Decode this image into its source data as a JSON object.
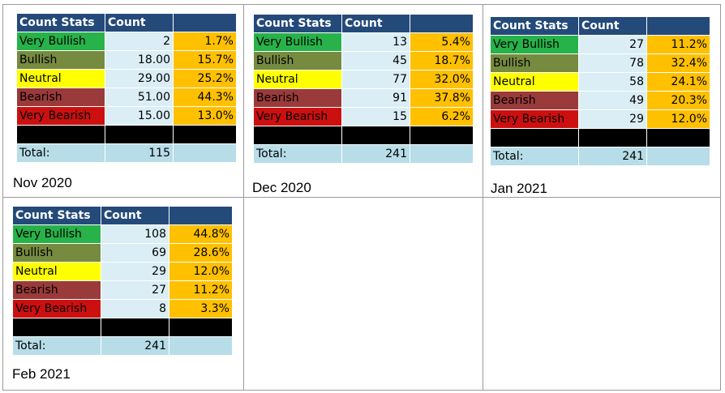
{
  "header": {
    "col1": "Count Stats",
    "col2": "Count",
    "col3": ""
  },
  "category_colors": {
    "very_bullish": "#27b24a",
    "bullish": "#768a40",
    "neutral": "#ffff00",
    "bearish": "#9a3a3a",
    "very_bearish": "#cc1010"
  },
  "panels": [
    {
      "caption": "Nov 2020",
      "rows": [
        {
          "label": "Very Bullish",
          "count": "2",
          "pct": "1.7%"
        },
        {
          "label": "Bullish",
          "count": "18.00",
          "pct": "15.7%"
        },
        {
          "label": "Neutral",
          "count": "29.00",
          "pct": "25.2%"
        },
        {
          "label": "Bearish",
          "count": "51.00",
          "pct": "44.3%"
        },
        {
          "label": "Very Bearish",
          "count": "15.00",
          "pct": "13.0%"
        }
      ],
      "total_label": "Total:",
      "total": "115"
    },
    {
      "caption": "Dec 2020",
      "rows": [
        {
          "label": "Very Bullish",
          "count": "13",
          "pct": "5.4%"
        },
        {
          "label": "Bullish",
          "count": "45",
          "pct": "18.7%"
        },
        {
          "label": "Neutral",
          "count": "77",
          "pct": "32.0%"
        },
        {
          "label": "Bearish",
          "count": "91",
          "pct": "37.8%"
        },
        {
          "label": "Very Bearish",
          "count": "15",
          "pct": "6.2%"
        }
      ],
      "total_label": "Total:",
      "total": "241"
    },
    {
      "caption": "Jan 2021",
      "rows": [
        {
          "label": "Very Bullish",
          "count": "27",
          "pct": "11.2%"
        },
        {
          "label": "Bullish",
          "count": "78",
          "pct": "32.4%"
        },
        {
          "label": "Neutral",
          "count": "58",
          "pct": "24.1%"
        },
        {
          "label": "Bearish",
          "count": "49",
          "pct": "20.3%"
        },
        {
          "label": "Very Bearish",
          "count": "29",
          "pct": "12.0%"
        }
      ],
      "total_label": "Total:",
      "total": "241"
    },
    {
      "caption": "Feb 2021",
      "rows": [
        {
          "label": "Very Bullish",
          "count": "108",
          "pct": "44.8%"
        },
        {
          "label": "Bullish",
          "count": "69",
          "pct": "28.6%"
        },
        {
          "label": "Neutral",
          "count": "29",
          "pct": "12.0%"
        },
        {
          "label": "Bearish",
          "count": "27",
          "pct": "11.2%"
        },
        {
          "label": "Very Bearish",
          "count": "8",
          "pct": "3.3%"
        }
      ],
      "total_label": "Total:",
      "total": "241"
    }
  ]
}
